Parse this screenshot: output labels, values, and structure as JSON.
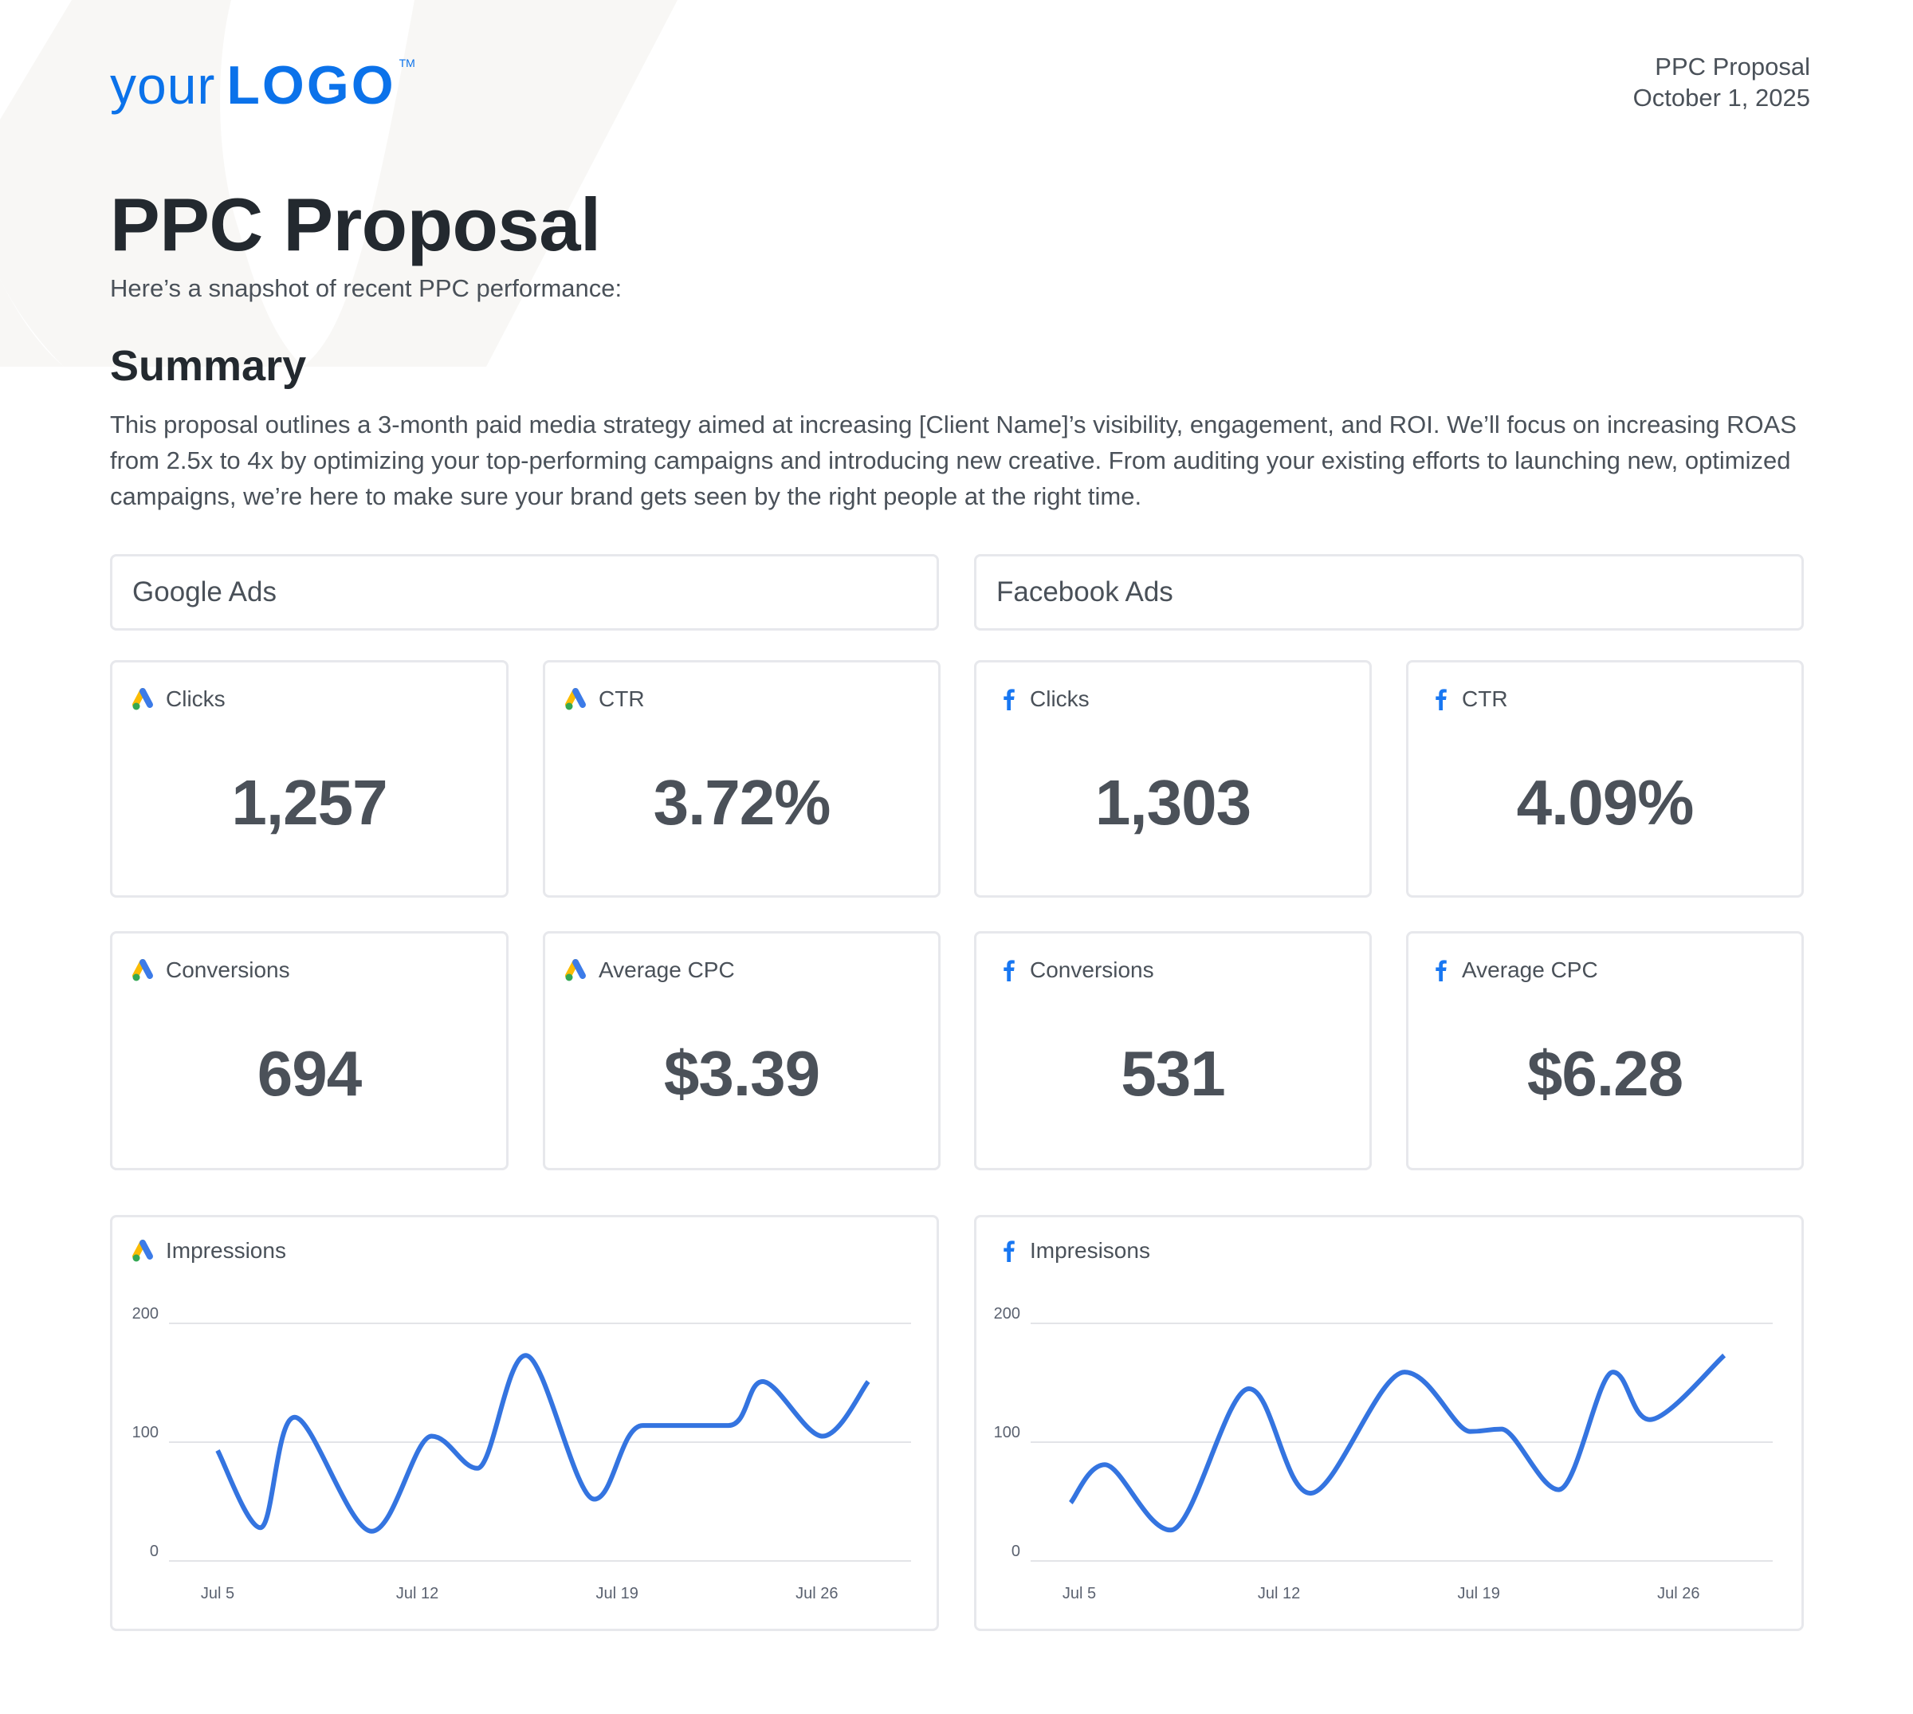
{
  "logo": {
    "your": "your",
    "word": "LOGO",
    "tm": "TM",
    "color": "#0b72ea"
  },
  "header": {
    "doc_name": "PPC Proposal",
    "date": "October 1, 2025"
  },
  "title": "PPC Proposal",
  "subtitle": "Here’s a snapshot of recent PPC performance:",
  "summary": {
    "heading": "Summary",
    "text": "This proposal outlines a 3-month paid media strategy aimed at increasing [Client Name]’s visibility, engagement, and ROI. We’ll focus on increasing ROAS from 2.5x to 4x by optimizing your top-performing campaigns and introducing new creative. From auditing your existing efforts to launching new, optimized campaigns, we’re here to make sure your brand gets seen by the right people at the right time."
  },
  "sections": [
    {
      "label": "Google Ads",
      "icon": "google-ads-icon"
    },
    {
      "label": "Facebook Ads",
      "icon": "facebook-icon"
    }
  ],
  "metrics": {
    "google": [
      {
        "label": "Clicks",
        "value": "1,257",
        "icon": "google-ads-icon"
      },
      {
        "label": "CTR",
        "value": "3.72%",
        "icon": "google-ads-icon"
      },
      {
        "label": "Conversions",
        "value": "694",
        "icon": "google-ads-icon"
      },
      {
        "label": "Average CPC",
        "value": "$3.39",
        "icon": "google-ads-icon"
      }
    ],
    "facebook": [
      {
        "label": "Clicks",
        "value": "1,303",
        "icon": "facebook-icon"
      },
      {
        "label": "CTR",
        "value": "4.09%",
        "icon": "facebook-icon"
      },
      {
        "label": "Conversions",
        "value": "531",
        "icon": "facebook-icon"
      },
      {
        "label": "Average CPC",
        "value": "$6.28",
        "icon": "facebook-icon"
      }
    ]
  },
  "colors": {
    "line": "#3474e0",
    "grid": "#e3e4e8",
    "text": "#4a5159",
    "value": "#4b5159",
    "facebook": "#1877f2",
    "google_blue": "#3c7be8",
    "google_yellow": "#fbbc04",
    "google_green": "#34a853"
  },
  "chart_data": [
    {
      "type": "line",
      "title": "Impressions",
      "source": "Google Ads",
      "xlabel": "",
      "ylabel": "",
      "ylim": [
        0,
        200
      ],
      "yticks": [
        "0",
        "100",
        "200"
      ],
      "xticks": [
        "Jul 5",
        "Jul 12",
        "Jul 19",
        "Jul 26"
      ],
      "grid": true,
      "legend": "none",
      "points": [
        {
          "day_offset_from_jul5": 0.0,
          "value": 93
        },
        {
          "day_offset_from_jul5": 1.5,
          "value": 28
        },
        {
          "day_offset_from_jul5": 2.7,
          "value": 121
        },
        {
          "day_offset_from_jul5": 5.4,
          "value": 25
        },
        {
          "day_offset_from_jul5": 7.5,
          "value": 105
        },
        {
          "day_offset_from_jul5": 9.1,
          "value": 78
        },
        {
          "day_offset_from_jul5": 10.8,
          "value": 173
        },
        {
          "day_offset_from_jul5": 13.2,
          "value": 52
        },
        {
          "day_offset_from_jul5": 14.9,
          "value": 114
        },
        {
          "day_offset_from_jul5": 17.9,
          "value": 114
        },
        {
          "day_offset_from_jul5": 19.1,
          "value": 151
        },
        {
          "day_offset_from_jul5": 21.2,
          "value": 105
        },
        {
          "day_offset_from_jul5": 22.8,
          "value": 151
        }
      ]
    },
    {
      "type": "line",
      "title": "Impresisons",
      "source": "Facebook Ads",
      "xlabel": "",
      "ylabel": "",
      "ylim": [
        0,
        200
      ],
      "yticks": [
        "0",
        "100",
        "200"
      ],
      "xticks": [
        "Jul 5",
        "Jul 12",
        "Jul 19",
        "Jul 26"
      ],
      "grid": true,
      "legend": "none",
      "points": [
        {
          "day_offset_from_jul5": -0.3,
          "value": 49
        },
        {
          "day_offset_from_jul5": 0.9,
          "value": 81
        },
        {
          "day_offset_from_jul5": 3.2,
          "value": 26
        },
        {
          "day_offset_from_jul5": 5.95,
          "value": 145
        },
        {
          "day_offset_from_jul5": 8.1,
          "value": 57
        },
        {
          "day_offset_from_jul5": 11.4,
          "value": 159
        },
        {
          "day_offset_from_jul5": 13.7,
          "value": 109
        },
        {
          "day_offset_from_jul5": 14.8,
          "value": 111
        },
        {
          "day_offset_from_jul5": 16.8,
          "value": 60
        },
        {
          "day_offset_from_jul5": 18.7,
          "value": 159
        },
        {
          "day_offset_from_jul5": 20.0,
          "value": 119
        },
        {
          "day_offset_from_jul5": 22.6,
          "value": 173
        }
      ]
    }
  ]
}
